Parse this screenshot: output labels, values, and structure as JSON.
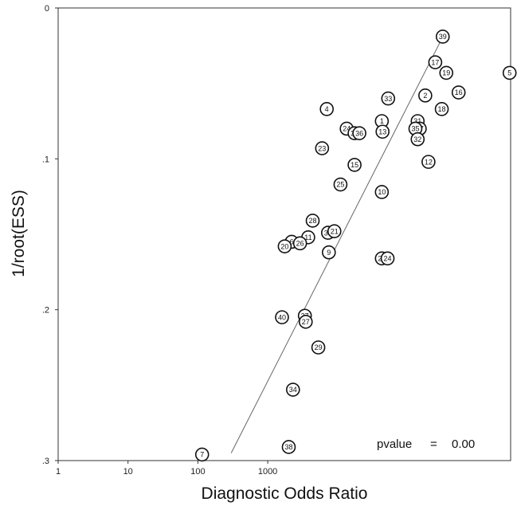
{
  "chart_data": {
    "type": "scatter",
    "title": "",
    "xlabel": "Diagnostic Odds Ratio",
    "ylabel": "1/root(ESS)",
    "x_scale": "log",
    "xlim": [
      1,
      3000000
    ],
    "ylim": [
      0,
      0.3
    ],
    "y_inverted": true,
    "x_ticks": [
      {
        "value": 1,
        "label": "1"
      },
      {
        "value": 10,
        "label": "10"
      },
      {
        "value": 100,
        "label": "100"
      },
      {
        "value": 1000,
        "label": "1000"
      }
    ],
    "y_ticks": [
      {
        "value": 0,
        "label": "0"
      },
      {
        "value": 0.1,
        "label": ".1"
      },
      {
        "value": 0.2,
        "label": ".2"
      },
      {
        "value": 0.3,
        "label": ".3"
      }
    ],
    "grid": false,
    "annotation": {
      "label": "pvalue",
      "sep": "=",
      "value": "0.00"
    },
    "fit_line": {
      "x": [
        300,
        330000
      ],
      "y": [
        0.295,
        0.018
      ]
    },
    "points": [
      {
        "id": "39",
        "x": 320000,
        "y": 0.019
      },
      {
        "id": "17",
        "x": 250000,
        "y": 0.036
      },
      {
        "id": "19",
        "x": 360000,
        "y": 0.043
      },
      {
        "id": "5",
        "x": 2900000,
        "y": 0.043
      },
      {
        "id": "16",
        "x": 540000,
        "y": 0.056
      },
      {
        "id": "2",
        "x": 180000,
        "y": 0.058
      },
      {
        "id": "33",
        "x": 53000,
        "y": 0.06
      },
      {
        "id": "18",
        "x": 310000,
        "y": 0.067
      },
      {
        "id": "4",
        "x": 7000,
        "y": 0.067
      },
      {
        "id": "1",
        "x": 43000,
        "y": 0.075
      },
      {
        "id": "31",
        "x": 140000,
        "y": 0.075
      },
      {
        "id": "24",
        "x": 13500,
        "y": 0.08
      },
      {
        "id": "37",
        "x": 150000,
        "y": 0.08
      },
      {
        "id": "35",
        "x": 130000,
        "y": 0.08
      },
      {
        "id": "13",
        "x": 44000,
        "y": 0.082
      },
      {
        "id": "30",
        "x": 17500,
        "y": 0.083
      },
      {
        "id": "36",
        "x": 20500,
        "y": 0.083
      },
      {
        "id": "32",
        "x": 140000,
        "y": 0.087
      },
      {
        "id": "23",
        "x": 6000,
        "y": 0.093
      },
      {
        "id": "12",
        "x": 200000,
        "y": 0.102
      },
      {
        "id": "15",
        "x": 17500,
        "y": 0.104
      },
      {
        "id": "25",
        "x": 11000,
        "y": 0.117
      },
      {
        "id": "10",
        "x": 43000,
        "y": 0.122
      },
      {
        "id": "28",
        "x": 4400,
        "y": 0.141
      },
      {
        "id": "30",
        "x": 7300,
        "y": 0.149
      },
      {
        "id": "21",
        "x": 9000,
        "y": 0.148
      },
      {
        "id": "11",
        "x": 3800,
        "y": 0.152
      },
      {
        "id": "6",
        "x": 2200,
        "y": 0.155
      },
      {
        "id": "26",
        "x": 2900,
        "y": 0.156
      },
      {
        "id": "20",
        "x": 1750,
        "y": 0.158
      },
      {
        "id": "9",
        "x": 7500,
        "y": 0.162
      },
      {
        "id": "22",
        "x": 43000,
        "y": 0.166
      },
      {
        "id": "24",
        "x": 52000,
        "y": 0.166
      },
      {
        "id": "40",
        "x": 1600,
        "y": 0.205
      },
      {
        "id": "27",
        "x": 3400,
        "y": 0.204
      },
      {
        "id": "27",
        "x": 3500,
        "y": 0.208
      },
      {
        "id": "29",
        "x": 5300,
        "y": 0.225
      },
      {
        "id": "34",
        "x": 2300,
        "y": 0.253
      },
      {
        "id": "38",
        "x": 2000,
        "y": 0.291
      },
      {
        "id": "7",
        "x": 115,
        "y": 0.296
      }
    ]
  }
}
